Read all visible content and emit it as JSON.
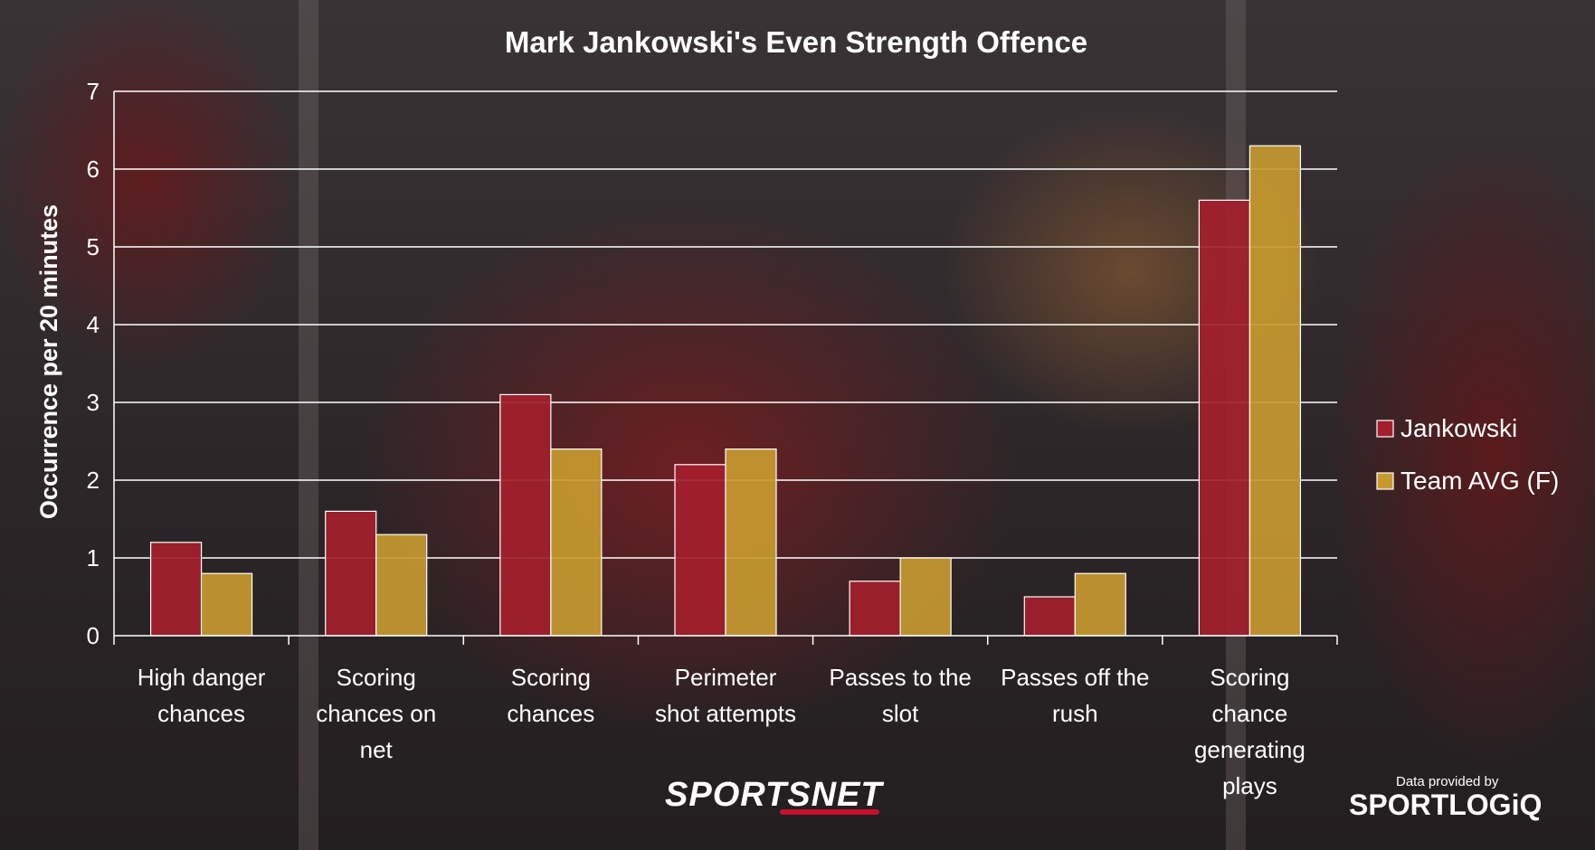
{
  "chart_data": {
    "type": "bar",
    "title": "Mark Jankowski's Even Strength Offence",
    "ylabel": "Occurrence per 20 minutes",
    "xlabel": "",
    "ylim": [
      0,
      7
    ],
    "yticks": [
      0,
      1,
      2,
      3,
      4,
      5,
      6,
      7
    ],
    "grid": true,
    "legend_position": "right",
    "categories": [
      [
        "High danger",
        "chances"
      ],
      [
        "Scoring",
        "chances on",
        "net"
      ],
      [
        "Scoring",
        "chances"
      ],
      [
        "Perimeter",
        "shot attempts"
      ],
      [
        "Passes to the",
        "slot"
      ],
      [
        "Passes off the",
        "rush"
      ],
      [
        "Scoring",
        "chance",
        "generating",
        "plays"
      ]
    ],
    "series": [
      {
        "name": "Jankowski",
        "color": "#a31f2c",
        "values": [
          1.2,
          1.6,
          3.1,
          2.2,
          0.7,
          0.5,
          5.6
        ]
      },
      {
        "name": "Team AVG (F)",
        "color": "#c79a30",
        "values": [
          0.8,
          1.3,
          2.4,
          2.4,
          1.0,
          0.8,
          6.3
        ]
      }
    ]
  },
  "branding": {
    "sportsnet": "SPORTSNET",
    "provided_by": "Data provided by",
    "sportlogiq": "SPORTLOGiQ"
  }
}
